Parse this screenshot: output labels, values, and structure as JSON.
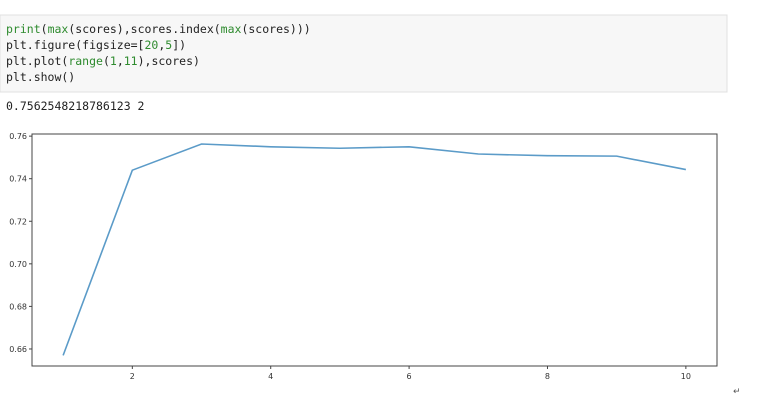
{
  "code": {
    "lines": [
      [
        {
          "text": "print",
          "color": "#2e8b2e"
        },
        {
          "text": "(",
          "color": "#222222"
        },
        {
          "text": "max",
          "color": "#2e8b2e"
        },
        {
          "text": "(scores),scores.index(",
          "color": "#222222"
        },
        {
          "text": "max",
          "color": "#2e8b2e"
        },
        {
          "text": "(scores)))",
          "color": "#222222"
        }
      ],
      [
        {
          "text": "plt.figure(figsize=[",
          "color": "#222222"
        },
        {
          "text": "20",
          "color": "#2e8b2e"
        },
        {
          "text": ",",
          "color": "#222222"
        },
        {
          "text": "5",
          "color": "#2e8b2e"
        },
        {
          "text": "])",
          "color": "#222222"
        }
      ],
      [
        {
          "text": "plt.plot(",
          "color": "#222222"
        },
        {
          "text": "range",
          "color": "#2e8b2e"
        },
        {
          "text": "(",
          "color": "#222222"
        },
        {
          "text": "1",
          "color": "#2e8b2e"
        },
        {
          "text": ",",
          "color": "#222222"
        },
        {
          "text": "11",
          "color": "#2e8b2e"
        },
        {
          "text": "),scores)",
          "color": "#222222"
        }
      ],
      [
        {
          "text": "plt.show()",
          "color": "#222222"
        }
      ]
    ]
  },
  "output": "0.7562548218786123 2",
  "return_mark": "↵",
  "chart_data": {
    "type": "line",
    "x": [
      1,
      2,
      3,
      4,
      5,
      6,
      7,
      8,
      9,
      10
    ],
    "series": [
      {
        "color": "#5b9bc8",
        "values": [
          0.657,
          0.744,
          0.7563,
          0.755,
          0.7543,
          0.755,
          0.7516,
          0.7508,
          0.7506,
          0.7443
        ]
      }
    ],
    "xlim": [
      0.55,
      10.45
    ],
    "xticks": [
      2,
      4,
      6,
      8,
      10
    ],
    "ylim": [
      0.652,
      0.761
    ],
    "yticks": [
      0.66,
      0.68,
      {
        "value": 0.7,
        "label": "0.70"
      },
      0.72,
      0.74,
      0.76
    ]
  }
}
